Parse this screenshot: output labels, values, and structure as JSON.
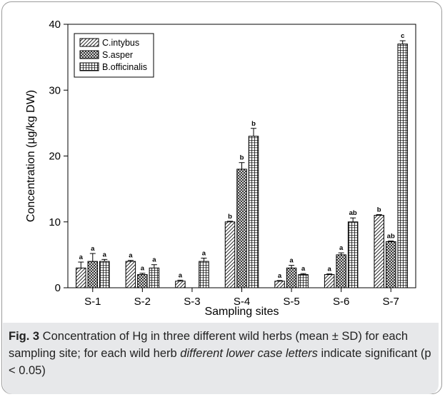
{
  "chart_data": {
    "type": "bar",
    "xlabel": "Sampling sites",
    "ylabel": "Concentration  (µg/kg DW)",
    "ylim": [
      0,
      40
    ],
    "yticks": [
      0,
      10,
      20,
      30,
      40
    ],
    "categories": [
      "S-1",
      "S-2",
      "S-3",
      "S-4",
      "S-5",
      "S-6",
      "S-7"
    ],
    "legend_position": "top-left",
    "series": [
      {
        "name": "C.intybus",
        "pattern": "diagonal-hatch",
        "values": [
          3.0,
          4.0,
          1.0,
          10.0,
          1.0,
          2.0,
          11.0
        ],
        "errors": [
          0.9,
          0.15,
          0.15,
          0.1,
          0.1,
          0.1,
          0.1
        ],
        "labels": [
          "a",
          "a",
          "a",
          "b",
          "a",
          "a",
          "b"
        ]
      },
      {
        "name": "S.asper",
        "pattern": "crosshatch",
        "values": [
          4.0,
          2.0,
          0,
          18.0,
          3.0,
          5.0,
          7.0
        ],
        "errors": [
          1.2,
          0.2,
          0,
          1.0,
          0.4,
          0.3,
          0.1
        ],
        "labels": [
          "a",
          "a",
          "",
          "b",
          "a",
          "a",
          "ab"
        ]
      },
      {
        "name": "B.officinalis",
        "pattern": "grid",
        "values": [
          4.0,
          3.0,
          4.0,
          23.0,
          2.0,
          10.0,
          37.0
        ],
        "errors": [
          0.3,
          0.5,
          0.5,
          1.2,
          0.15,
          0.6,
          0.5
        ],
        "labels": [
          "a",
          "a",
          "a",
          "b",
          "a",
          "ab",
          "c"
        ]
      }
    ]
  },
  "caption": {
    "lead": "Fig. 3",
    "part1": "  Concentration of Hg in three different wild herbs (mean ± SD) for each sampling site; for each wild herb ",
    "italic": "different lower case letters",
    "part2": " indicate significant (p < 0.05)"
  }
}
